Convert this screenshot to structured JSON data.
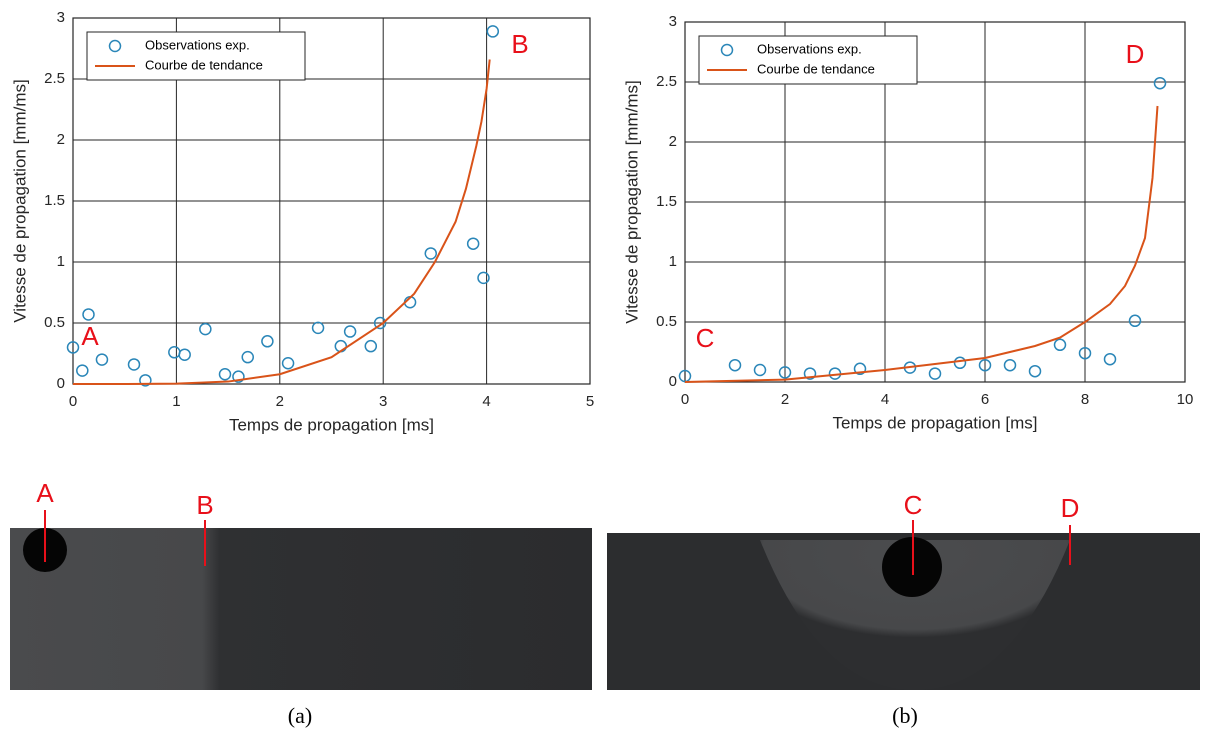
{
  "chart_data": [
    {
      "type": "scatter",
      "xlabel": "Temps de propagation [ms]",
      "ylabel": "Vitesse de propagation [mm/ms]",
      "xlim": [
        0,
        5
      ],
      "xticks": [
        0,
        1,
        2,
        3,
        4,
        5
      ],
      "ylim": [
        0,
        3
      ],
      "yticks": [
        0,
        0.5,
        1,
        1.5,
        2,
        2.5,
        3
      ],
      "grid": true,
      "legend": "upper left",
      "annotations": [
        "A",
        "B"
      ],
      "series": [
        {
          "name": "Observations exp.",
          "type": "scatter",
          "color": "#2a86b8",
          "x": [
            0,
            0.09,
            0.15,
            0.28,
            0.59,
            0.7,
            0.98,
            1.08,
            1.28,
            1.47,
            1.6,
            1.69,
            1.88,
            2.08,
            2.37,
            2.59,
            2.68,
            2.88,
            2.97,
            3.26,
            3.46,
            3.87,
            3.97,
            4.06
          ],
          "values": [
            0.3,
            0.11,
            0.57,
            0.2,
            0.16,
            0.03,
            0.26,
            0.24,
            0.45,
            0.08,
            0.06,
            0.22,
            0.35,
            0.17,
            0.46,
            0.31,
            0.43,
            0.31,
            0.5,
            0.67,
            1.07,
            1.15,
            0.87,
            2.89
          ]
        },
        {
          "name": "Courbe de tendance",
          "type": "line",
          "color": "#d95319",
          "x": [
            0,
            0.5,
            1,
            1.5,
            2,
            2.5,
            3,
            3.3,
            3.5,
            3.7,
            3.8,
            3.9,
            3.95,
            4,
            4.03
          ],
          "values": [
            0,
            0,
            0.003,
            0.02,
            0.08,
            0.22,
            0.5,
            0.74,
            1.0,
            1.33,
            1.6,
            1.95,
            2.15,
            2.42,
            2.66
          ]
        }
      ]
    },
    {
      "type": "scatter",
      "xlabel": "Temps de propagation [ms]",
      "ylabel": "Vitesse de propagation [mm/ms]",
      "xlim": [
        0,
        10
      ],
      "xticks": [
        0,
        2,
        4,
        6,
        8,
        10
      ],
      "ylim": [
        0,
        3
      ],
      "yticks": [
        0,
        0.5,
        1,
        1.5,
        2,
        2.5,
        3
      ],
      "grid": true,
      "legend": "upper left",
      "annotations": [
        "C",
        "D"
      ],
      "series": [
        {
          "name": "Observations exp.",
          "type": "scatter",
          "color": "#2a86b8",
          "x": [
            0,
            1,
            1.5,
            2,
            2.5,
            3,
            3.5,
            4.5,
            5,
            5.5,
            6,
            6.5,
            7,
            7.5,
            8,
            8.5,
            9,
            9.5
          ],
          "values": [
            0.05,
            0.14,
            0.1,
            0.08,
            0.07,
            0.07,
            0.11,
            0.12,
            0.07,
            0.16,
            0.14,
            0.14,
            0.09,
            0.31,
            0.24,
            0.19,
            0.51,
            2.49
          ]
        },
        {
          "name": "Courbe de tendance",
          "type": "line",
          "color": "#d95319",
          "x": [
            0,
            2,
            4,
            5,
            6,
            7,
            7.5,
            8,
            8.5,
            8.8,
            9,
            9.2,
            9.35,
            9.45
          ],
          "values": [
            0,
            0.02,
            0.1,
            0.15,
            0.2,
            0.3,
            0.37,
            0.5,
            0.65,
            0.8,
            0.97,
            1.2,
            1.7,
            2.3
          ]
        }
      ]
    }
  ],
  "photos": [
    {
      "labels": [
        "A",
        "B"
      ],
      "caption": "(a)"
    },
    {
      "labels": [
        "C",
        "D"
      ],
      "caption": "(b)"
    }
  ]
}
